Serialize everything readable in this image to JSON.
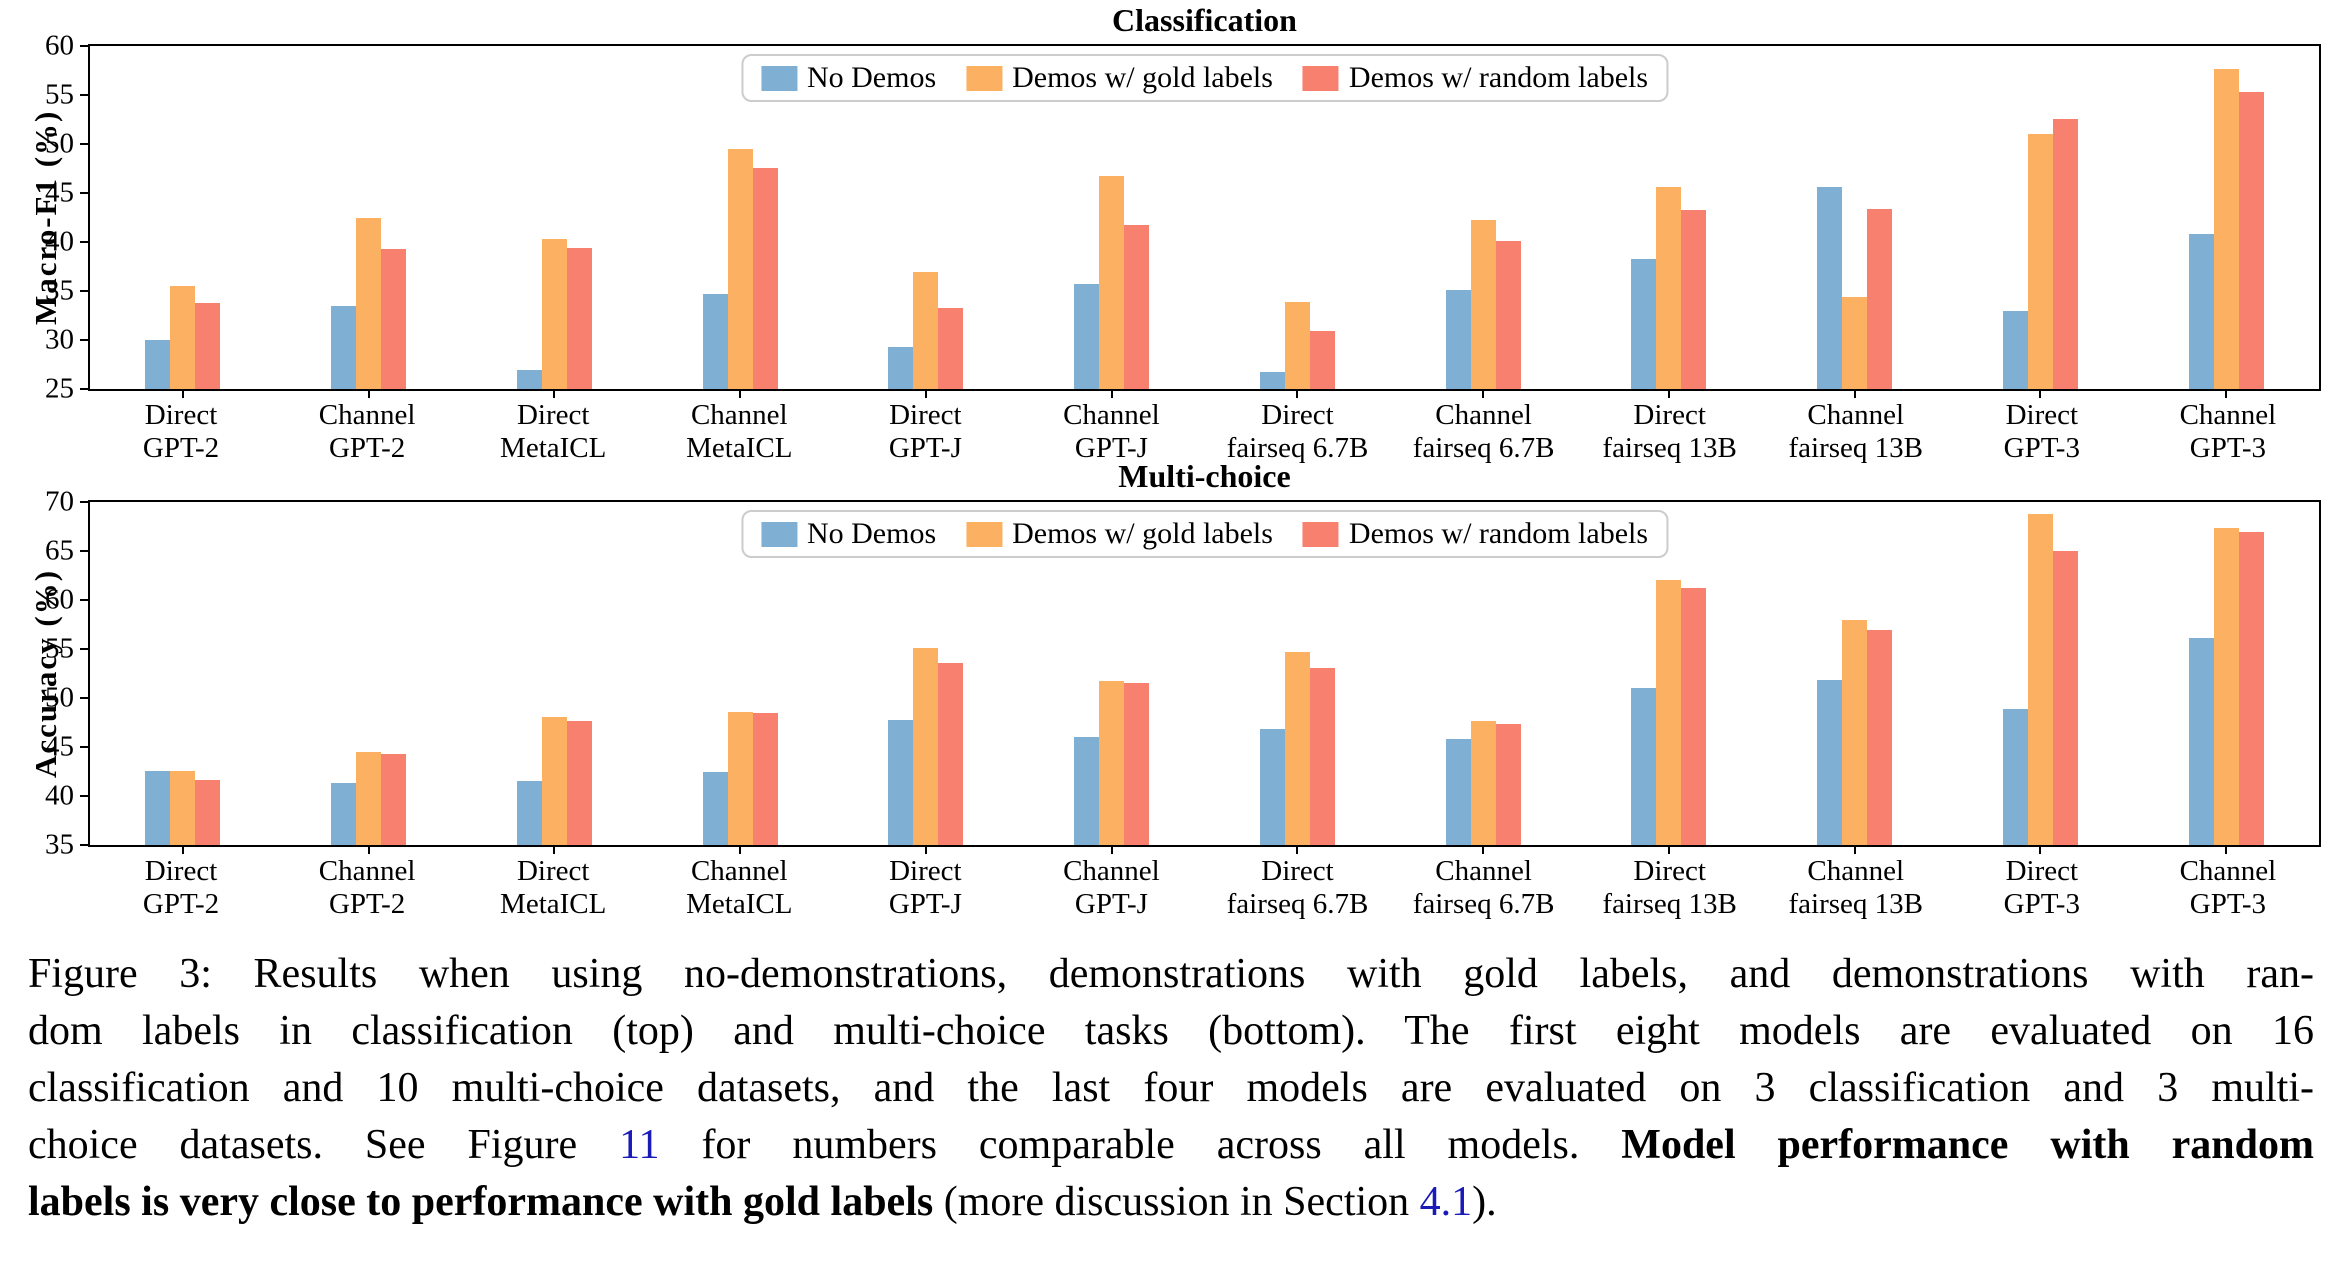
{
  "colors": {
    "no_demos": "#7FAFD3",
    "gold_labels": "#FCB061",
    "random_labels": "#F8806E",
    "reference_link": "#1A1AB8",
    "axis": "#000000",
    "legend_border": "#CCCCCC"
  },
  "legend_labels": [
    "No Demos",
    "Demos w/ gold labels",
    "Demos w/ random labels"
  ],
  "chart_data": [
    {
      "type": "bar",
      "title": "Classification",
      "ylabel": "Macro-F1 (%)",
      "ylim": [
        25,
        60
      ],
      "yticks": [
        25,
        30,
        35,
        40,
        45,
        50,
        55,
        60
      ],
      "grid": false,
      "legend_position": "upper center",
      "categories": [
        "Direct\nGPT-2",
        "Channel\nGPT-2",
        "Direct\nMetaICL",
        "Channel\nMetaICL",
        "Direct\nGPT-J",
        "Channel\nGPT-J",
        "Direct\nfairseq 6.7B",
        "Channel\nfairseq 6.7B",
        "Direct\nfairseq 13B",
        "Channel\nfairseq 13B",
        "Direct\nGPT-3",
        "Channel\nGPT-3"
      ],
      "series": [
        {
          "name": "No Demos",
          "color": "#7FAFD3",
          "values": [
            30.0,
            33.5,
            26.9,
            34.7,
            29.3,
            35.7,
            26.7,
            35.1,
            38.3,
            45.6,
            33.0,
            40.8
          ]
        },
        {
          "name": "Demos w/ gold labels",
          "color": "#FCB061",
          "values": [
            35.5,
            42.4,
            40.3,
            49.5,
            36.9,
            46.7,
            33.9,
            42.2,
            45.6,
            34.4,
            51.0,
            57.7
          ]
        },
        {
          "name": "Demos w/ random labels",
          "color": "#F8806E",
          "values": [
            33.8,
            39.3,
            39.4,
            47.6,
            33.3,
            41.7,
            30.9,
            40.1,
            43.3,
            43.4,
            52.6,
            55.3
          ]
        }
      ]
    },
    {
      "type": "bar",
      "title": "Multi-choice",
      "ylabel": "Accuracy (%)",
      "ylim": [
        35,
        70
      ],
      "yticks": [
        35,
        40,
        45,
        50,
        55,
        60,
        65,
        70
      ],
      "grid": false,
      "legend_position": "upper center",
      "categories": [
        "Direct\nGPT-2",
        "Channel\nGPT-2",
        "Direct\nMetaICL",
        "Channel\nMetaICL",
        "Direct\nGPT-J",
        "Channel\nGPT-J",
        "Direct\nfairseq 6.7B",
        "Channel\nfairseq 6.7B",
        "Direct\nfairseq 13B",
        "Channel\nfairseq 13B",
        "Direct\nGPT-3",
        "Channel\nGPT-3"
      ],
      "series": [
        {
          "name": "No Demos",
          "color": "#7FAFD3",
          "values": [
            42.6,
            41.3,
            41.5,
            42.4,
            47.8,
            46.0,
            46.8,
            45.8,
            51.0,
            51.8,
            48.9,
            56.1
          ]
        },
        {
          "name": "Demos w/ gold labels",
          "color": "#FCB061",
          "values": [
            42.6,
            44.5,
            48.1,
            48.6,
            55.1,
            51.7,
            54.7,
            47.7,
            62.0,
            58.0,
            68.8,
            67.3
          ]
        },
        {
          "name": "Demos w/ random labels",
          "color": "#F8806E",
          "values": [
            41.6,
            44.3,
            47.7,
            48.5,
            53.6,
            51.5,
            53.1,
            47.3,
            61.2,
            56.9,
            65.0,
            66.9
          ]
        }
      ]
    }
  ],
  "caption": {
    "lines": [
      [
        {
          "t": "Figure 3:  Results when using no-demonstrations, demonstrations with gold labels, and demonstrations with ran-"
        }
      ],
      [
        {
          "t": "dom labels in classification (top) and multi-choice tasks (bottom).  The first eight models are evaluated on 16"
        }
      ],
      [
        {
          "t": "classification and 10 multi-choice datasets, and the last four models are evaluated on 3 classification and 3 multi-"
        }
      ],
      [
        {
          "t": "choice datasets.  See Figure "
        },
        {
          "t": "11",
          "s": "link",
          "n": "figure-11-ref-link"
        },
        {
          "t": " for numbers comparable across all models.  ",
          "s": ""
        },
        {
          "t": "Model performance with random",
          "s": "bold"
        }
      ],
      [
        {
          "t": "labels is very close to performance with gold labels",
          "s": "bold"
        },
        {
          "t": " (more discussion in Section "
        },
        {
          "t": "4.1",
          "s": "link",
          "n": "section-4-1-ref-link"
        },
        {
          "t": ")."
        }
      ]
    ]
  }
}
